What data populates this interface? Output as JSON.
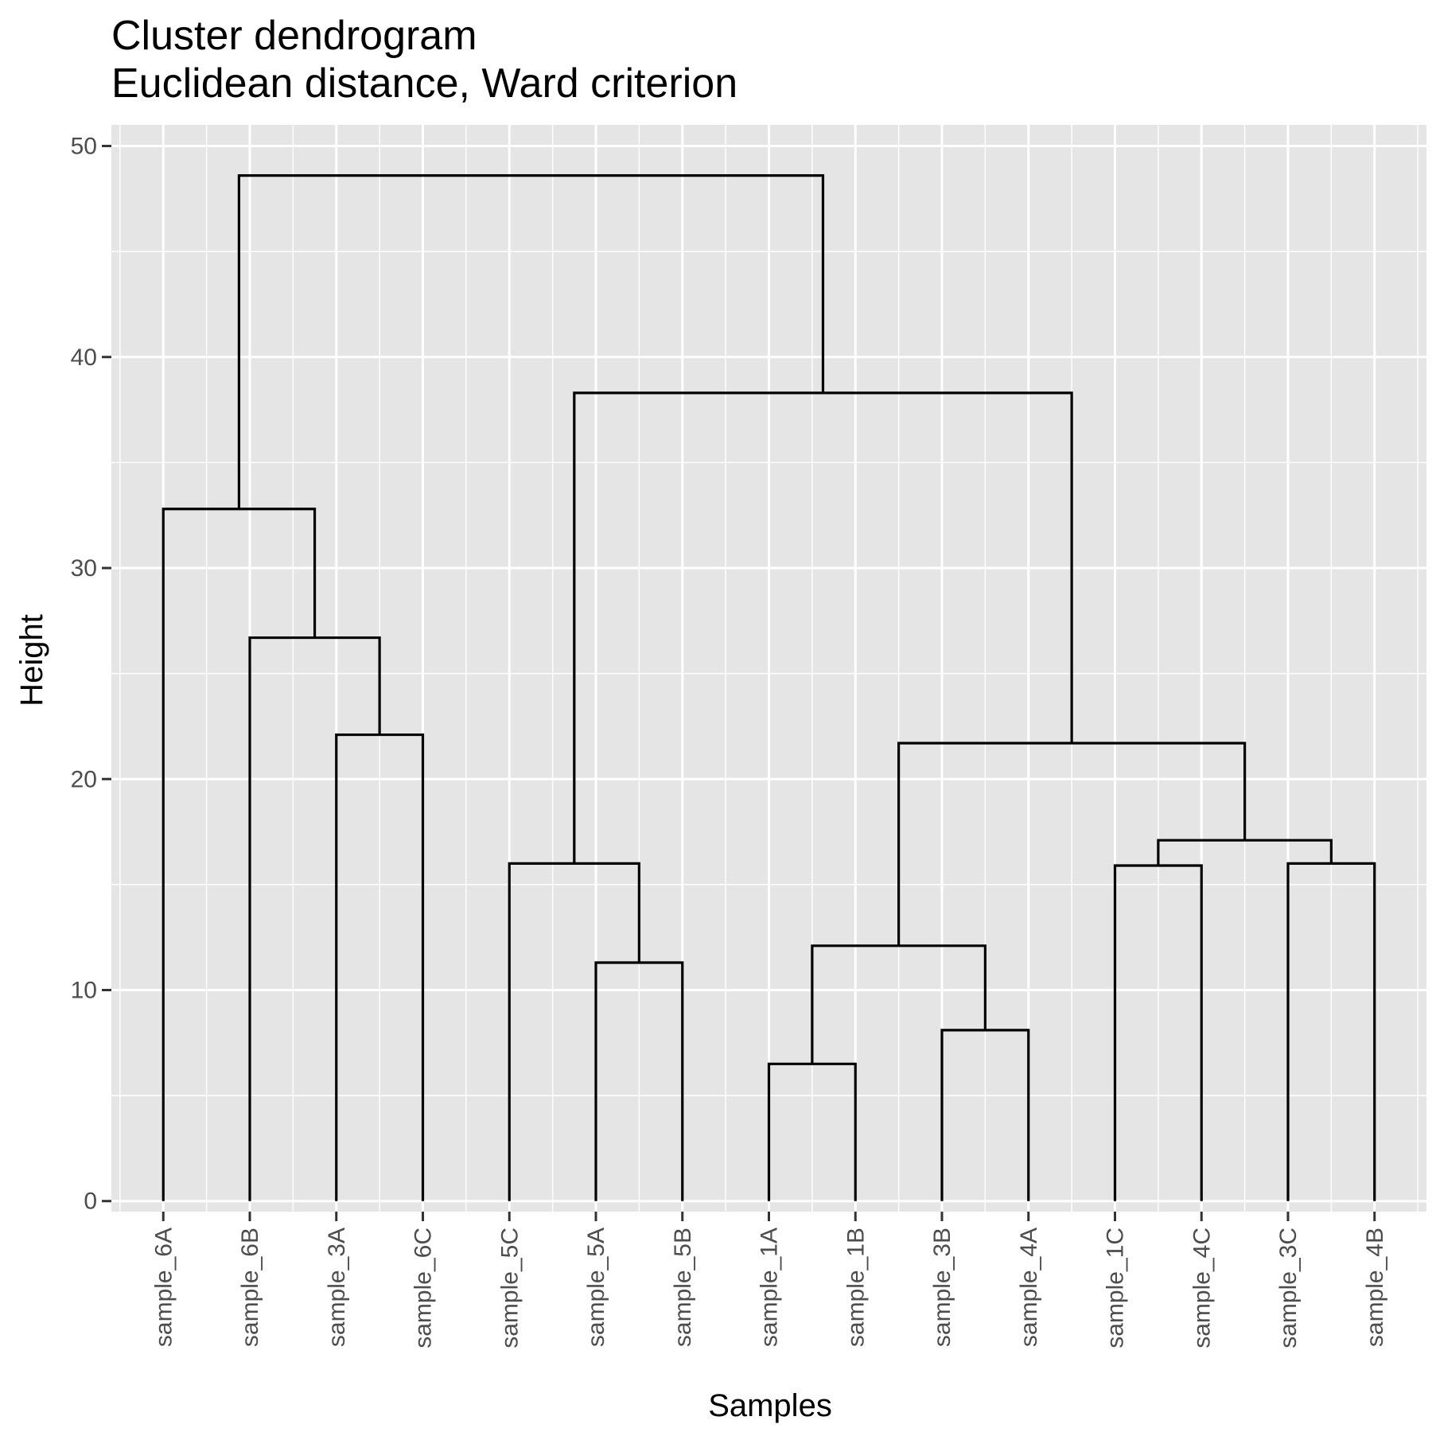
{
  "chart_data": {
    "type": "dendrogram",
    "title": "Cluster dendrogram",
    "subtitle": "Euclidean distance, Ward criterion",
    "xlabel": "Samples",
    "ylabel": "Height",
    "ylim": [
      -0.5,
      51
    ],
    "yticks": [
      0,
      10,
      20,
      30,
      40,
      50
    ],
    "grid": true,
    "leaves": [
      "sample_6A",
      "sample_6B",
      "sample_3A",
      "sample_6C",
      "sample_5C",
      "sample_5A",
      "sample_5B",
      "sample_1A",
      "sample_1B",
      "sample_3B",
      "sample_4A",
      "sample_1C",
      "sample_4C",
      "sample_3C",
      "sample_4B"
    ],
    "merges": [
      {
        "left": "sample_1A",
        "right": "sample_1B",
        "height": 6.5
      },
      {
        "left": "sample_3B",
        "right": "sample_4A",
        "height": 8.1
      },
      {
        "left": "sample_5A",
        "right": "sample_5B",
        "height": 11.3
      },
      {
        "left": 0,
        "right": 1,
        "height": 12.1
      },
      {
        "left": "sample_1C",
        "right": "sample_4C",
        "height": 15.9
      },
      {
        "left": "sample_3C",
        "right": "sample_4B",
        "height": 16.0
      },
      {
        "left": "sample_5C",
        "right": 2,
        "height": 16.0
      },
      {
        "left": 4,
        "right": 5,
        "height": 17.1
      },
      {
        "left": 3,
        "right": 7,
        "height": 21.7
      },
      {
        "left": "sample_3A",
        "right": "sample_6C",
        "height": 22.1
      },
      {
        "left": "sample_6B",
        "right": 9,
        "height": 26.7
      },
      {
        "left": "sample_6A",
        "right": 10,
        "height": 32.8
      },
      {
        "left": 6,
        "right": 8,
        "height": 38.3
      },
      {
        "left": 11,
        "right": 12,
        "height": 48.6
      }
    ],
    "colors": {
      "panel": "#e5e5e5",
      "grid": "#ffffff",
      "branch": "#000000",
      "tick_text": "#4d4d4d"
    }
  }
}
